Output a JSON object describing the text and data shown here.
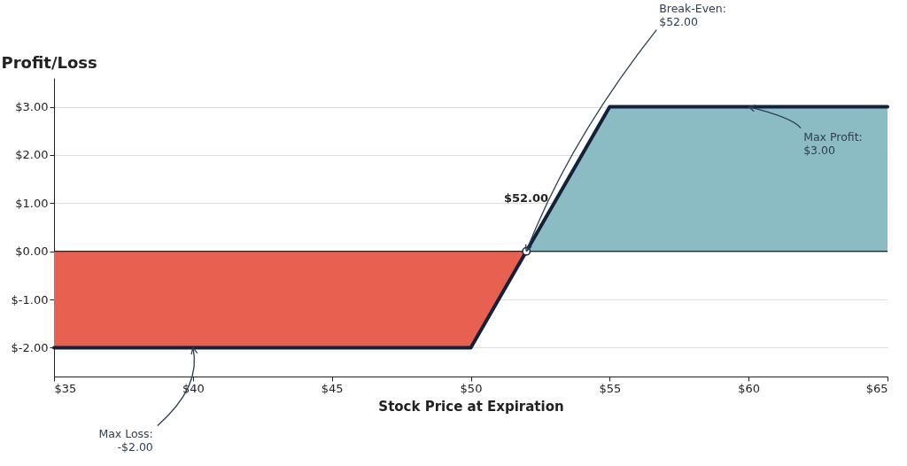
{
  "chart_data": {
    "type": "line",
    "ylabel": "Profit/Loss",
    "xlabel": "Stock Price at Expiration",
    "xlim": [
      35,
      65
    ],
    "ylim": [
      -2.6,
      3.6
    ],
    "xticks": [
      {
        "value": 35,
        "label": "$35"
      },
      {
        "value": 40,
        "label": "$40"
      },
      {
        "value": 45,
        "label": "$45"
      },
      {
        "value": 50,
        "label": "$50"
      },
      {
        "value": 55,
        "label": "$55"
      },
      {
        "value": 60,
        "label": "$60"
      },
      {
        "value": 65,
        "label": "$65"
      }
    ],
    "yticks": [
      {
        "value": -2,
        "label": "$-2.00"
      },
      {
        "value": -1,
        "label": "$-1.00"
      },
      {
        "value": 0,
        "label": "$0.00"
      },
      {
        "value": 1,
        "label": "$1.00"
      },
      {
        "value": 2,
        "label": "$2.00"
      },
      {
        "value": 3,
        "label": "$3.00"
      }
    ],
    "grid": "y",
    "ref_lines": [
      {
        "axis": "y",
        "value": 0,
        "color": "#222222"
      }
    ],
    "series": [
      {
        "type": "area",
        "color": "#e8604f",
        "x": [
          35,
          50,
          52
        ],
        "values": [
          -2,
          -2,
          0
        ]
      },
      {
        "type": "area",
        "color": "#8bbcc3",
        "x": [
          52,
          55,
          65
        ],
        "values": [
          0,
          3,
          3
        ]
      },
      {
        "color": "#13213c",
        "x": [
          35,
          50,
          55,
          65
        ],
        "values": [
          -2,
          -2,
          3,
          3
        ],
        "line_style": "solid"
      },
      {
        "type": "scatter",
        "color": "#ffffff",
        "x": [
          52
        ],
        "values": [
          0
        ],
        "marker": "circle"
      }
    ],
    "annotations": [
      {
        "text": "Break-Even:\n$52.00",
        "x": 52,
        "y": 0
      },
      {
        "text": "Max Profit:\n$3.00",
        "x": 60,
        "y": 3
      },
      {
        "text": "Max Loss:\n-$2.00",
        "x": 40,
        "y": -2
      },
      "$52.00"
    ]
  }
}
